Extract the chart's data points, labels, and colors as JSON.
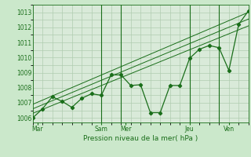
{
  "title": "",
  "xlabel": "Pression niveau de la mer( hPa )",
  "ylabel": "",
  "bg_color": "#cbe8cb",
  "plot_bg_color": "#d9ead9",
  "grid_color": "#b0ccb0",
  "line_color": "#1a6e1a",
  "ylim": [
    1005.7,
    1013.5
  ],
  "xlim": [
    0,
    22
  ],
  "yticks": [
    1006,
    1007,
    1008,
    1009,
    1010,
    1011,
    1012,
    1013
  ],
  "day_tick_positions": [
    0.5,
    7,
    9.5,
    16,
    20
  ],
  "day_labels": [
    "Mar",
    "Sam",
    "Mer",
    "Jeu",
    "Ven"
  ],
  "day_vlines": [
    7,
    9,
    16,
    19
  ],
  "main_x": [
    0,
    1,
    2,
    3,
    4,
    5,
    6,
    7,
    8,
    9,
    10,
    11,
    12,
    13,
    14,
    15,
    16,
    17,
    18,
    19,
    20,
    21,
    22
  ],
  "main_y": [
    1006.0,
    1006.6,
    1007.4,
    1007.1,
    1006.7,
    1007.3,
    1007.6,
    1007.5,
    1008.85,
    1008.85,
    1008.15,
    1008.2,
    1006.35,
    1006.35,
    1008.15,
    1008.15,
    1009.95,
    1010.55,
    1010.8,
    1010.65,
    1009.15,
    1012.2,
    1013.1
  ],
  "trend1_x": [
    0,
    22
  ],
  "trend1_y": [
    1006.3,
    1012.1
  ],
  "trend2_x": [
    0,
    22
  ],
  "trend2_y": [
    1006.6,
    1012.55
  ],
  "trend3_x": [
    0,
    22
  ],
  "trend3_y": [
    1006.9,
    1013.0
  ]
}
